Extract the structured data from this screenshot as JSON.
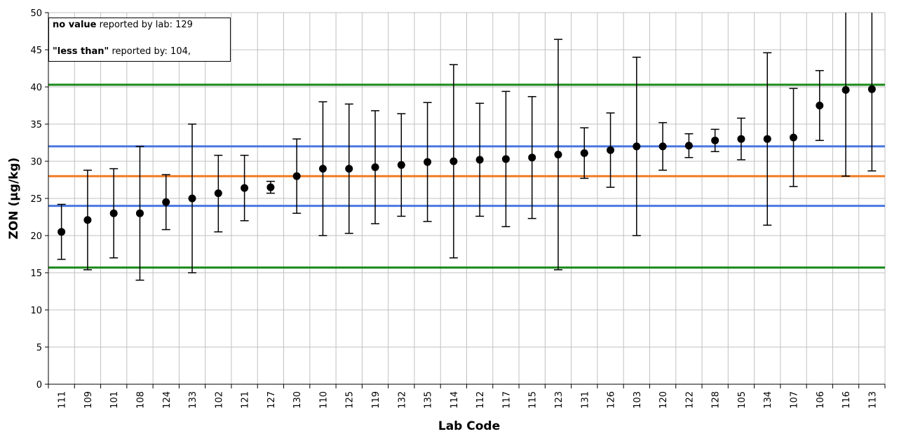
{
  "chart_data": {
    "type": "scatter",
    "xlabel": "Lab Code",
    "ylabel": "ZON (µg/kg)",
    "ylim": [
      0,
      50
    ],
    "yticks": [
      0,
      5,
      10,
      15,
      20,
      25,
      30,
      35,
      40,
      45,
      50
    ],
    "grid": true,
    "categories": [
      "111",
      "109",
      "101",
      "108",
      "124",
      "133",
      "102",
      "121",
      "127",
      "130",
      "110",
      "125",
      "119",
      "132",
      "135",
      "114",
      "112",
      "117",
      "115",
      "123",
      "131",
      "126",
      "103",
      "120",
      "122",
      "128",
      "105",
      "134",
      "107",
      "106",
      "116",
      "113"
    ],
    "values": [
      20.5,
      22.1,
      23.0,
      23.0,
      24.5,
      25.0,
      25.7,
      26.4,
      26.5,
      28.0,
      29.0,
      29.0,
      29.2,
      29.5,
      29.9,
      30.0,
      30.2,
      30.3,
      30.5,
      30.9,
      31.1,
      31.5,
      32.0,
      32.0,
      32.1,
      32.8,
      33.0,
      33.0,
      33.2,
      37.5,
      39.6,
      39.7
    ],
    "error_low": [
      16.8,
      15.4,
      17.0,
      14.0,
      20.8,
      15.0,
      20.5,
      22.0,
      25.7,
      23.0,
      20.0,
      20.3,
      21.6,
      22.6,
      21.9,
      17.0,
      22.6,
      21.2,
      22.3,
      15.4,
      27.7,
      26.5,
      20.0,
      28.8,
      30.5,
      31.3,
      30.2,
      21.4,
      26.6,
      32.8,
      28.0,
      28.7
    ],
    "error_high": [
      24.2,
      28.8,
      29.0,
      32.0,
      28.2,
      35.0,
      30.8,
      30.8,
      27.3,
      33.0,
      38.0,
      37.7,
      36.8,
      36.4,
      37.9,
      43.0,
      37.8,
      39.4,
      38.7,
      46.4,
      34.5,
      36.5,
      44.0,
      35.2,
      33.7,
      34.3,
      35.8,
      44.6,
      39.8,
      42.2,
      51.0,
      51.0
    ],
    "reference_lines": [
      {
        "value": 40.3,
        "color": "#1a8a1a"
      },
      {
        "value": 32.0,
        "color": "#4a78e0"
      },
      {
        "value": 28.0,
        "color": "#f07a20"
      },
      {
        "value": 24.0,
        "color": "#4a78e0"
      },
      {
        "value": 15.7,
        "color": "#1a8a1a"
      }
    ],
    "legend": {
      "placement": "top-left",
      "lines": [
        {
          "bold": "no value",
          "text": " reported by lab: 129"
        },
        {
          "bold": "\"less than\"",
          "text": " reported by: 104,"
        }
      ]
    },
    "colors": {
      "grid": "#c0c0c0",
      "marker": "#000000",
      "axis": "#000000"
    }
  }
}
